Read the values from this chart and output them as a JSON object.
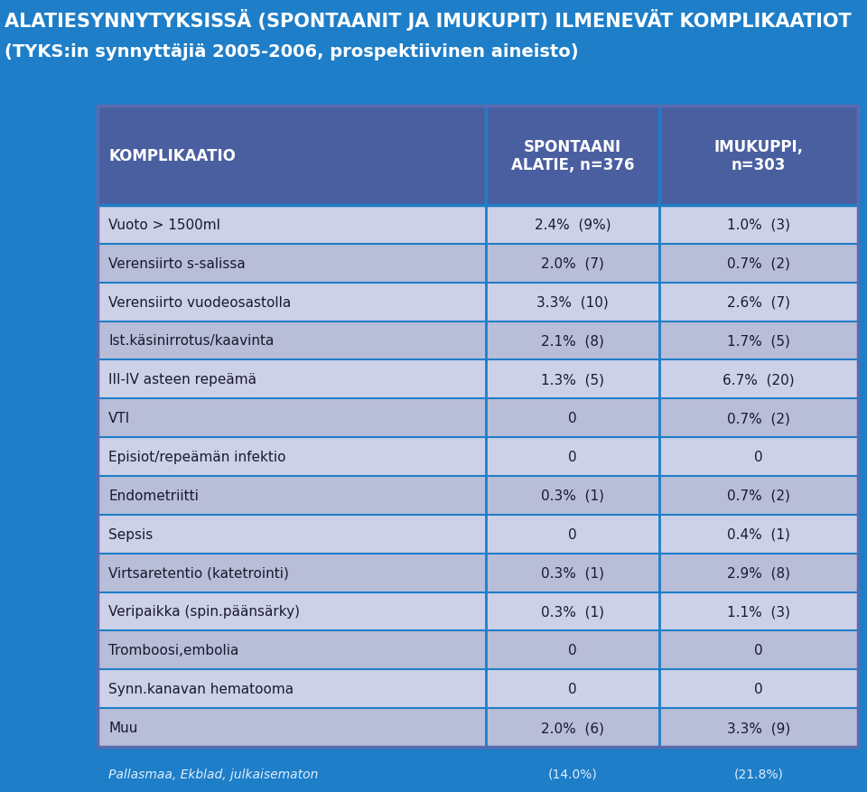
{
  "title_line1": "ALATIESYNNYTYKSISSÄ (SPONTAANIT JA IMUKUPIT) ILMENEVÄT KOMPLIKAATIOT",
  "title_line2": "(TYKS:in synnyttäjiä 2005-2006, prospektiivinen aineisto)",
  "bg_color": "#1E7EC8",
  "header_bg": "#4A5FA0",
  "row_bg_light": "#CDD1E8",
  "row_bg_dark": "#B8BDD8",
  "divider_color": "#1E7EC8",
  "border_color": "#5A6AB0",
  "header_text_color": "#FFFFFF",
  "row_text_color": "#1A1A2E",
  "footer_text_color": "#DDEEFF",
  "col_headers": [
    "KOMPLIKAATIO",
    "SPONTAANI\nALATIE, n=376",
    "IMUKUPPI,\nn=303"
  ],
  "rows": [
    [
      "Vuoto > 1500ml",
      "2.4%  (9%)",
      "1.0%  (3)"
    ],
    [
      "Verensiirto s-salissa",
      "2.0%  (7)",
      "0.7%  (2)"
    ],
    [
      "Verensiirto vuodeosastolla",
      "3.3%  (10)",
      "2.6%  (7)"
    ],
    [
      "Ist.käsinirrotus/kaavinta",
      "2.1%  (8)",
      "1.7%  (5)"
    ],
    [
      "III-IV asteen repeämä",
      "1.3%  (5)",
      "6.7%  (20)"
    ],
    [
      "VTI",
      "0",
      "0.7%  (2)"
    ],
    [
      "Episiot/repeämän infektio",
      "0",
      "0"
    ],
    [
      "Endometriitti",
      "0.3%  (1)",
      "0.7%  (2)"
    ],
    [
      "Sepsis",
      "0",
      "0.4%  (1)"
    ],
    [
      "Virtsaretentio (katetrointi)",
      "0.3%  (1)",
      "2.9%  (8)"
    ],
    [
      "Veripaikka (spin.päänsärky)",
      "0.3%  (1)",
      "1.1%  (3)"
    ],
    [
      "Tromboosi,embolia",
      "0",
      "0"
    ],
    [
      "Synn.kanavan hematooma",
      "0",
      "0"
    ],
    [
      "Muu",
      "2.0%  (6)",
      "3.3%  (9)"
    ]
  ],
  "footer_col1": "Pallasmaa, Ekblad, julkaisematon",
  "footer_col2": "(14.0%)",
  "footer_col3": "(21.8%)"
}
